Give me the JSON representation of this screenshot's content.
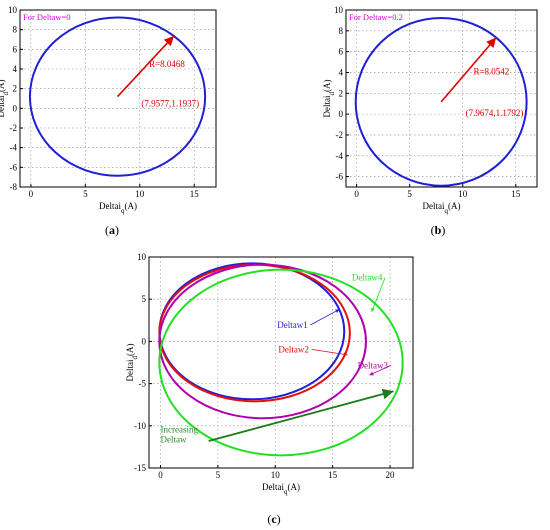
{
  "chart_data": [
    {
      "id": "a",
      "type": "scatter",
      "caption": {
        "open": "(",
        "letter": "a",
        "close": ")"
      },
      "xlabel": {
        "main": "Deltai",
        "sub": "q",
        "unit": "(A)"
      },
      "ylabel": {
        "main": "Deltai",
        "sub": "d",
        "unit": "(A)"
      },
      "xlim": [
        -1,
        17
      ],
      "ylim": [
        -8,
        10
      ],
      "xticks": [
        0,
        5,
        10,
        15
      ],
      "yticks": [
        -8,
        -6,
        -4,
        -2,
        0,
        2,
        4,
        6,
        8,
        10
      ],
      "grid": true,
      "legend_text": "For Deltaw=0",
      "legend_color": "#e000e0",
      "circle": {
        "center": [
          7.9577,
          1.1937
        ],
        "radius": 8.0468,
        "color": "#1f1fd6"
      },
      "arrow": {
        "from": [
          7.9577,
          1.1937
        ],
        "angle_deg": 50,
        "color": "#e00000"
      },
      "labels": [
        {
          "text": "R=8.0468",
          "x": 12.5,
          "y": 4.2,
          "color": "#e00000"
        },
        {
          "text": "(7.9577,1.1937)",
          "x": 12.8,
          "y": 0.2,
          "color": "#e00000"
        }
      ]
    },
    {
      "id": "b",
      "type": "scatter",
      "caption": {
        "open": "(",
        "letter": "b",
        "close": ")"
      },
      "xlabel": {
        "main": "Deltai",
        "sub": "q",
        "unit": "(A)"
      },
      "ylabel": {
        "main": "Deltai",
        "sub": "d",
        "unit": "(A)"
      },
      "xlim": [
        -1,
        17
      ],
      "ylim": [
        -7,
        10
      ],
      "xticks": [
        0,
        5,
        10,
        15
      ],
      "yticks": [
        -6,
        -4,
        -2,
        0,
        2,
        4,
        6,
        8,
        10
      ],
      "grid": true,
      "legend_text": "For Deltaw=0.2",
      "legend_color": "#e000e0",
      "circle": {
        "center": [
          7.9674,
          1.1792
        ],
        "radius": 8.0542,
        "color": "#1f1fd6"
      },
      "arrow": {
        "from": [
          7.9674,
          1.1792
        ],
        "angle_deg": 50,
        "color": "#e00000"
      },
      "labels": [
        {
          "text": "R=8.0542",
          "x": 12.7,
          "y": 3.8,
          "color": "#e00000"
        },
        {
          "text": "(7.9674,1.1792)",
          "x": 13.0,
          "y": -0.2,
          "color": "#e00000"
        }
      ]
    },
    {
      "id": "c",
      "type": "line",
      "caption": {
        "open": "(",
        "letter": "c",
        "close": ")"
      },
      "xlabel": {
        "main": "Deltai",
        "sub": "q",
        "unit": "(A)"
      },
      "ylabel": {
        "main": "Deltai",
        "sub": "d",
        "unit": "(A)"
      },
      "xlim": [
        -1,
        22
      ],
      "ylim": [
        -15,
        10
      ],
      "xticks": [
        0,
        5,
        10,
        15,
        20
      ],
      "yticks": [
        -15,
        -10,
        -5,
        0,
        5,
        10
      ],
      "grid": true,
      "series": [
        {
          "name": "Deltaw1",
          "color": "#1f1fd6",
          "center": [
            7.96,
            1.19
          ],
          "rx": 8.05,
          "ry": 8.05,
          "label_at": [
            11.5,
            1.6
          ],
          "arrow_to": [
            15.6,
            3.8
          ]
        },
        {
          "name": "Deltaw2",
          "color": "#e01010",
          "center": [
            8.2,
            1.0
          ],
          "rx": 8.3,
          "ry": 8.1,
          "label_at": [
            11.6,
            -1.3
          ],
          "arrow_to": [
            16.3,
            -1.6
          ]
        },
        {
          "name": "Deltaw3",
          "color": "#b000b0",
          "center": [
            8.9,
            0.0
          ],
          "rx": 9.0,
          "ry": 9.1,
          "label_at": [
            18.5,
            -3.2
          ],
          "arrow_to": [
            18.2,
            -4.0
          ]
        },
        {
          "name": "Deltaw4",
          "color": "#22e022",
          "center": [
            10.5,
            -2.5
          ],
          "rx": 10.6,
          "ry": 11.0,
          "label_at": [
            18.0,
            7.2
          ],
          "arrow_to": [
            18.4,
            3.5
          ]
        }
      ],
      "annotation": {
        "lines": [
          "Increasing",
          "Deltaw"
        ],
        "color": "#2e8b2e",
        "at": [
          0.0,
          -10.8
        ],
        "arrow_from": [
          4.2,
          -11.8
        ],
        "arrow_to": [
          20.3,
          -5.9
        ]
      }
    }
  ]
}
